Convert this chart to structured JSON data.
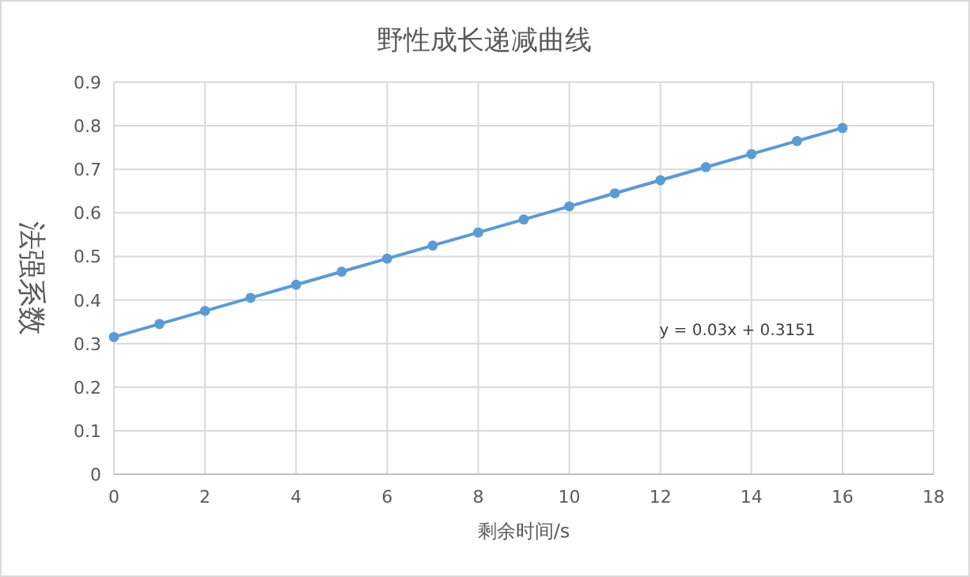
{
  "chart_data": {
    "type": "line",
    "title": "野性成长递减曲线",
    "xlabel": "剩余时间/s",
    "ylabel": "法强系数",
    "x": [
      0,
      1,
      2,
      3,
      4,
      5,
      6,
      7,
      8,
      9,
      10,
      11,
      12,
      13,
      14,
      15,
      16
    ],
    "series": [
      {
        "color": "#5b9bd5",
        "values": [
          0.315,
          0.345,
          0.375,
          0.405,
          0.435,
          0.465,
          0.495,
          0.525,
          0.555,
          0.585,
          0.615,
          0.645,
          0.675,
          0.705,
          0.735,
          0.765,
          0.795
        ]
      }
    ],
    "xlim": [
      0,
      18
    ],
    "xticks": [
      0,
      2,
      4,
      6,
      8,
      10,
      12,
      14,
      16,
      18
    ],
    "ylim": [
      0,
      0.9
    ],
    "yticks": [
      0,
      0.1,
      0.2,
      0.3,
      0.4,
      0.5,
      0.6,
      0.7,
      0.8,
      0.9
    ],
    "grid": true,
    "marker": "circle",
    "line_style": "solid",
    "annotations": [
      "y = 0.03x + 0.3151"
    ]
  }
}
